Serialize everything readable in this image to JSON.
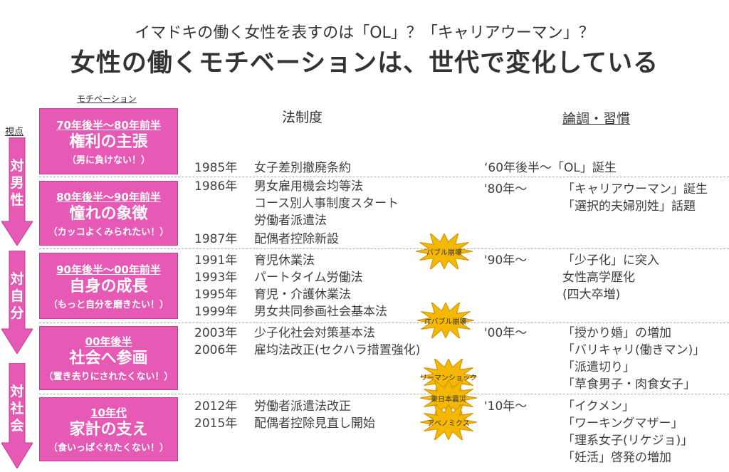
{
  "title": {
    "line1": "イマドキの働く女性を表すのは「OL」？「キャリアウーマン」？",
    "line2": "女性の働くモチベーションは、世代で変化している"
  },
  "headers": {
    "motivation": "モチベーション",
    "viewpoint": "視点",
    "law": "法制度",
    "custom": "論調・習慣"
  },
  "viewpoints": [
    "対男性",
    "対自分",
    "対社会"
  ],
  "colors": {
    "pink": "#e659b4",
    "burst": "#f5b800"
  },
  "generations": [
    {
      "era": "70年後半～80年前半",
      "title": "権利の主張",
      "sub": "（男に負けない！）"
    },
    {
      "era": "80年後半～90年前半",
      "title": "憧れの象徴",
      "sub": "（カッコよくみられたい！）"
    },
    {
      "era": "90年後半～00年前半",
      "title": "自身の成長",
      "sub": "（もっと自分を磨きたい！）"
    },
    {
      "era": "00年後半",
      "title": "社会へ参画",
      "sub": "（置き去りにされたくない！）"
    },
    {
      "era": "10年代",
      "title": "家計の支え",
      "sub": "（食いっぱぐれたくない！）"
    }
  ],
  "laws": [
    {
      "year": "1985年",
      "text": "女子差別撤廃条約"
    },
    {
      "year": "1986年",
      "text": "男女雇用機会均等法"
    },
    {
      "year": "",
      "text": "コース別人事制度スタート"
    },
    {
      "year": "",
      "text": "労働者派遣法"
    },
    {
      "year": "1987年",
      "text": "配偶者控除新設"
    },
    {
      "year": "1991年",
      "text": "育児休業法"
    },
    {
      "year": "1993年",
      "text": "パートタイム労働法"
    },
    {
      "year": "1995年",
      "text": "育児・介護休業法"
    },
    {
      "year": "1999年",
      "text": "男女共同参画社会基本法"
    },
    {
      "year": "2003年",
      "text": "少子化社会対策基本法"
    },
    {
      "year": "2006年",
      "text": "雇均法改正(セクハラ措置強化)"
    },
    {
      "year": "2012年",
      "text": "労働者派遣法改正"
    },
    {
      "year": "2015年",
      "text": "配偶者控除見直し開始"
    }
  ],
  "customs": [
    {
      "year": "‘60年後半～「OL」誕生",
      "text": ""
    },
    {
      "year": "'80年～",
      "text": "「キャリアウーマン」誕生"
    },
    {
      "year": "",
      "text": "「選択的夫婦別姓」話題"
    },
    {
      "year": "'90年～",
      "text": "「少子化」に突入"
    },
    {
      "year": "",
      "text": "女性高学歴化"
    },
    {
      "year": "",
      "text": "(四大卒増)"
    },
    {
      "year": "'00年～",
      "text": "「授かり婚」の増加"
    },
    {
      "year": "",
      "text": "「バリキャリ(働きマン)」"
    },
    {
      "year": "",
      "text": "「派遣切り」"
    },
    {
      "year": "",
      "text": "「草食男子・肉食女子」"
    },
    {
      "year": "'10年～",
      "text": "「イクメン」"
    },
    {
      "year": "",
      "text": "「ワーキングマザー」"
    },
    {
      "year": "",
      "text": "「理系女子(リケジョ)」"
    },
    {
      "year": "",
      "text": "「妊活」啓発の増加"
    }
  ],
  "events": [
    "バブル崩壊",
    "ITバブル崩壊",
    "リーマンショック",
    "東日本震災",
    "アベノミクス"
  ]
}
